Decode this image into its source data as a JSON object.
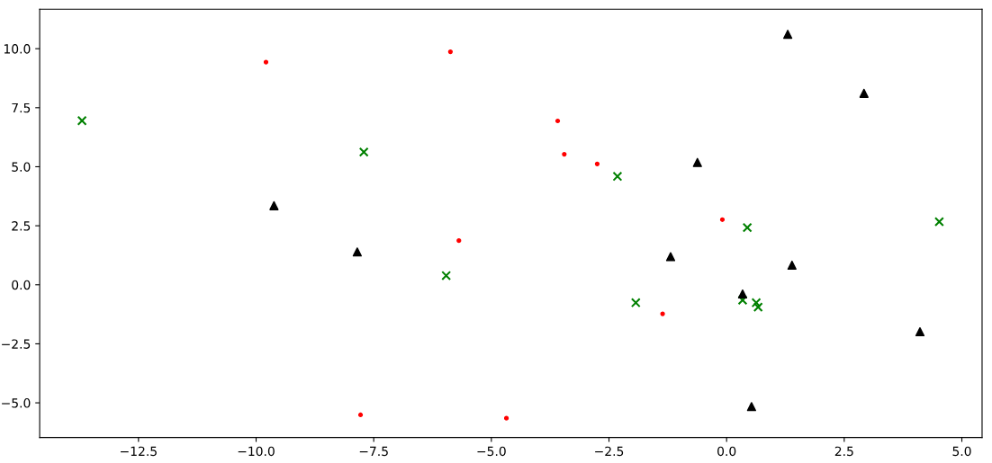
{
  "chart_data": {
    "type": "scatter",
    "xlim": [
      -14.6,
      5.43
    ],
    "ylim": [
      -6.47,
      11.67
    ],
    "xticks": [
      {
        "value": -12.5,
        "label": "−12.5"
      },
      {
        "value": -10,
        "label": "−10.0"
      },
      {
        "value": -7.5,
        "label": "−7.5"
      },
      {
        "value": -5,
        "label": "−5.0"
      },
      {
        "value": -2.5,
        "label": "−2.5"
      },
      {
        "value": 0,
        "label": "0.0"
      },
      {
        "value": 2.5,
        "label": "2.5"
      },
      {
        "value": 5,
        "label": "5.0"
      }
    ],
    "yticks": [
      {
        "value": -5,
        "label": "−5.0"
      },
      {
        "value": -2.5,
        "label": "−2.5"
      },
      {
        "value": 0,
        "label": "0.0"
      },
      {
        "value": 2.5,
        "label": "2.5"
      },
      {
        "value": 5,
        "label": "5.0"
      },
      {
        "value": 7.5,
        "label": "7.5"
      },
      {
        "value": 10,
        "label": "10.0"
      }
    ],
    "grid": false,
    "legend": false,
    "series": [
      {
        "color": "#ff0000",
        "marker": "circle",
        "x": [
          -9.79,
          -5.87,
          -5.69,
          -7.78,
          -4.68,
          -3.59,
          -3.45,
          -2.75,
          -0.09,
          -1.36
        ],
        "values": [
          9.43,
          9.87,
          1.87,
          -5.51,
          -5.65,
          6.94,
          5.53,
          5.12,
          2.76,
          -1.23
        ]
      },
      {
        "color": "#008000",
        "marker": "cross",
        "x": [
          -13.7,
          -7.71,
          -5.96,
          -2.32,
          0.44,
          4.52,
          -1.93,
          0.34,
          0.63,
          0.67
        ],
        "values": [
          6.95,
          5.62,
          0.39,
          4.59,
          2.42,
          2.67,
          -0.76,
          -0.65,
          -0.76,
          -0.95
        ]
      },
      {
        "color": "#000000",
        "marker": "triangle",
        "x": [
          -9.62,
          -7.85,
          -0.62,
          1.3,
          2.92,
          -1.19,
          1.39,
          0.34,
          4.11,
          0.53
        ],
        "values": [
          3.35,
          1.39,
          5.18,
          10.61,
          8.11,
          1.19,
          0.83,
          -0.39,
          -1.99,
          -5.16
        ]
      }
    ]
  }
}
